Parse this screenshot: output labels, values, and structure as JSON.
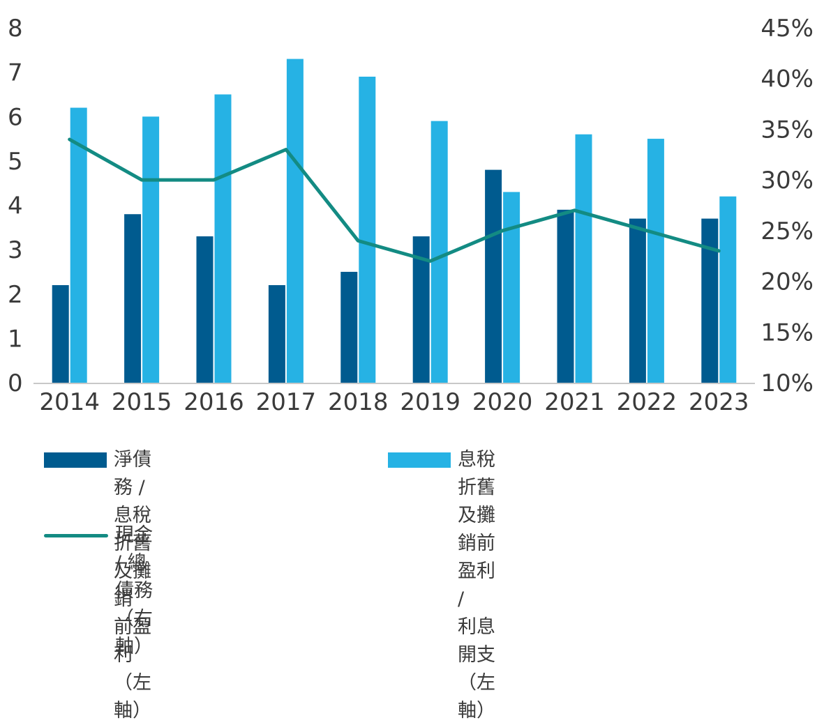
{
  "chart_data": {
    "type": "bar",
    "categories": [
      "2014",
      "2015",
      "2016",
      "2017",
      "2018",
      "2019",
      "2020",
      "2021",
      "2022",
      "2023"
    ],
    "series": [
      {
        "name": "淨債務 / 息稅折舊及攤銷\n前盈利（左軸）",
        "axis": "left",
        "type": "bar",
        "color": "#005b8f",
        "values": [
          2.2,
          3.8,
          3.3,
          2.2,
          2.5,
          3.3,
          4.8,
          3.9,
          3.7,
          3.7
        ]
      },
      {
        "name": "息稅折舊及攤銷前盈利 /\n利息開支（左軸）",
        "axis": "left",
        "type": "bar",
        "color": "#26b2e4",
        "values": [
          6.2,
          6.0,
          6.5,
          7.3,
          6.9,
          5.9,
          4.3,
          5.6,
          5.5,
          4.2
        ]
      },
      {
        "name": "現金 / 總債務（右軸）",
        "axis": "right",
        "type": "line",
        "color": "#138b83",
        "values": [
          34,
          30,
          30,
          33,
          24,
          22,
          25,
          27,
          25,
          23
        ]
      }
    ],
    "yleft": {
      "lim": [
        0,
        8
      ],
      "ticks": [
        "0",
        "1",
        "2",
        "3",
        "4",
        "5",
        "6",
        "7",
        "8"
      ]
    },
    "yright": {
      "lim": [
        10,
        45
      ],
      "ticks": [
        "10%",
        "15%",
        "20%",
        "25%",
        "30%",
        "35%",
        "40%",
        "45%"
      ]
    },
    "grid": false,
    "legend_position": "bottom"
  }
}
